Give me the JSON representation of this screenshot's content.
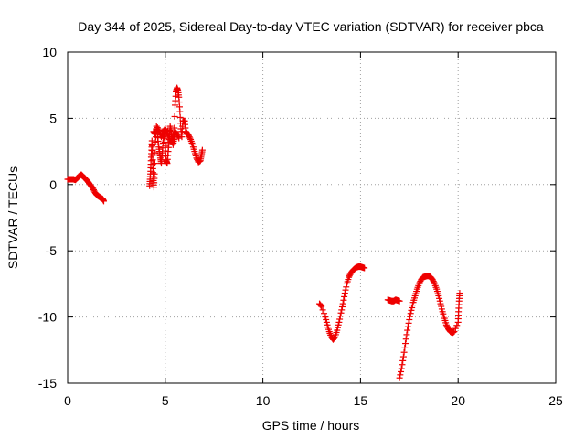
{
  "chart_data": {
    "type": "scatter",
    "title": "Day 344 of 2025, Sidereal Day-to-day VTEC variation (SDTVAR) for receiver pbca",
    "xlabel": "GPS time / hours",
    "ylabel": "SDTVAR / TECUs",
    "xlim": [
      0,
      25
    ],
    "ylim": [
      -15,
      10
    ],
    "xticks": [
      0,
      5,
      10,
      15,
      20,
      25
    ],
    "yticks": [
      -15,
      -10,
      -5,
      0,
      5,
      10
    ],
    "xtick_labels": [
      "0",
      "5",
      "10",
      "15",
      "20",
      "25"
    ],
    "ytick_labels": [
      "-15",
      "-10",
      "-5",
      "0",
      "5",
      "10"
    ],
    "grid": true,
    "marker": "+",
    "color": "#ee0000",
    "series": [
      {
        "name": "pbca",
        "points": [
          [
            0.0,
            0.4
          ],
          [
            0.1,
            0.4
          ],
          [
            0.2,
            0.4
          ],
          [
            0.3,
            0.4
          ],
          [
            0.4,
            0.35
          ],
          [
            0.5,
            0.5
          ],
          [
            0.6,
            0.65
          ],
          [
            0.7,
            0.75
          ],
          [
            0.8,
            0.6
          ],
          [
            0.9,
            0.45
          ],
          [
            1.0,
            0.3
          ],
          [
            1.1,
            0.1
          ],
          [
            1.2,
            -0.1
          ],
          [
            1.3,
            -0.3
          ],
          [
            1.4,
            -0.6
          ],
          [
            1.5,
            -0.8
          ],
          [
            1.6,
            -0.9
          ],
          [
            1.7,
            -1.0
          ],
          [
            1.8,
            -1.1
          ],
          [
            1.85,
            -1.25
          ],
          [
            4.2,
            -0.1
          ],
          [
            4.22,
            0.4
          ],
          [
            4.25,
            1.0
          ],
          [
            4.27,
            1.8
          ],
          [
            4.3,
            2.6
          ],
          [
            4.32,
            3.3
          ],
          [
            4.35,
            2.2
          ],
          [
            4.37,
            1.2
          ],
          [
            4.4,
            0.3
          ],
          [
            4.42,
            -0.2
          ],
          [
            4.45,
            0.8
          ],
          [
            4.5,
            3.2
          ],
          [
            4.55,
            4.4
          ],
          [
            4.6,
            3.8
          ],
          [
            4.65,
            3.0
          ],
          [
            4.7,
            2.5
          ],
          [
            4.75,
            2.0
          ],
          [
            4.8,
            1.6
          ],
          [
            4.85,
            2.4
          ],
          [
            4.9,
            3.5
          ],
          [
            4.95,
            3.8
          ],
          [
            5.0,
            2.9
          ],
          [
            5.05,
            1.8
          ],
          [
            5.1,
            1.6
          ],
          [
            5.15,
            2.5
          ],
          [
            5.2,
            3.4
          ],
          [
            5.25,
            4.4
          ],
          [
            5.3,
            4.0
          ],
          [
            5.35,
            3.4
          ],
          [
            5.4,
            3.0
          ],
          [
            5.45,
            3.4
          ],
          [
            5.5,
            6.0
          ],
          [
            5.55,
            7.0
          ],
          [
            5.6,
            7.3
          ],
          [
            5.65,
            7.1
          ],
          [
            5.7,
            6.6
          ],
          [
            5.75,
            5.5
          ],
          [
            5.8,
            4.2
          ],
          [
            5.85,
            3.6
          ],
          [
            5.9,
            4.8
          ],
          [
            6.0,
            4.8
          ],
          [
            6.05,
            4.0
          ],
          [
            6.1,
            3.9
          ],
          [
            6.2,
            3.7
          ],
          [
            6.3,
            3.4
          ],
          [
            6.4,
            3.0
          ],
          [
            6.5,
            2.5
          ],
          [
            6.6,
            2.0
          ],
          [
            6.7,
            1.7
          ],
          [
            6.8,
            1.8
          ],
          [
            6.85,
            2.2
          ],
          [
            6.9,
            2.6
          ],
          [
            4.4,
            4.0
          ],
          [
            4.5,
            3.8
          ],
          [
            4.6,
            4.3
          ],
          [
            4.7,
            4.0
          ],
          [
            4.8,
            3.6
          ],
          [
            4.9,
            4.0
          ],
          [
            5.0,
            4.2
          ],
          [
            5.1,
            3.9
          ],
          [
            5.2,
            3.5
          ],
          [
            5.3,
            3.2
          ],
          [
            5.4,
            3.6
          ],
          [
            5.5,
            4.0
          ],
          [
            5.6,
            3.8
          ],
          [
            5.7,
            3.5
          ],
          [
            12.9,
            -9.0
          ],
          [
            13.0,
            -9.2
          ],
          [
            13.2,
            -10.0
          ],
          [
            13.3,
            -10.6
          ],
          [
            13.4,
            -11.1
          ],
          [
            13.5,
            -11.5
          ],
          [
            13.6,
            -11.7
          ],
          [
            13.7,
            -11.5
          ],
          [
            13.8,
            -11.0
          ],
          [
            13.9,
            -10.4
          ],
          [
            14.0,
            -9.7
          ],
          [
            14.1,
            -9.0
          ],
          [
            14.2,
            -8.2
          ],
          [
            14.3,
            -7.5
          ],
          [
            14.4,
            -7.0
          ],
          [
            14.5,
            -6.7
          ],
          [
            14.6,
            -6.5
          ],
          [
            14.7,
            -6.35
          ],
          [
            14.8,
            -6.25
          ],
          [
            14.9,
            -6.2
          ],
          [
            15.0,
            -6.2
          ],
          [
            15.1,
            -6.25
          ],
          [
            15.2,
            -6.3
          ],
          [
            16.4,
            -8.7
          ],
          [
            16.5,
            -8.75
          ],
          [
            16.6,
            -8.8
          ],
          [
            16.7,
            -8.8
          ],
          [
            16.8,
            -8.7
          ],
          [
            16.9,
            -8.75
          ],
          [
            17.0,
            -8.8
          ],
          [
            17.0,
            -14.6
          ],
          [
            17.1,
            -13.9
          ],
          [
            17.2,
            -13.0
          ],
          [
            17.3,
            -12.0
          ],
          [
            17.4,
            -11.0
          ],
          [
            17.5,
            -10.2
          ],
          [
            17.6,
            -9.5
          ],
          [
            17.7,
            -8.9
          ],
          [
            17.8,
            -8.4
          ],
          [
            17.9,
            -7.9
          ],
          [
            18.0,
            -7.5
          ],
          [
            18.1,
            -7.2
          ],
          [
            18.2,
            -7.0
          ],
          [
            18.3,
            -6.95
          ],
          [
            18.4,
            -6.9
          ],
          [
            18.5,
            -6.9
          ],
          [
            18.6,
            -7.0
          ],
          [
            18.7,
            -7.2
          ],
          [
            18.8,
            -7.5
          ],
          [
            18.9,
            -7.9
          ],
          [
            19.0,
            -8.4
          ],
          [
            19.1,
            -9.0
          ],
          [
            19.2,
            -9.6
          ],
          [
            19.3,
            -10.1
          ],
          [
            19.4,
            -10.6
          ],
          [
            19.5,
            -10.9
          ],
          [
            19.6,
            -11.1
          ],
          [
            19.7,
            -11.2
          ],
          [
            19.8,
            -11.1
          ],
          [
            20.0,
            -10.4
          ],
          [
            20.02,
            -9.6
          ],
          [
            20.05,
            -8.8
          ],
          [
            20.08,
            -8.2
          ]
        ]
      }
    ]
  }
}
